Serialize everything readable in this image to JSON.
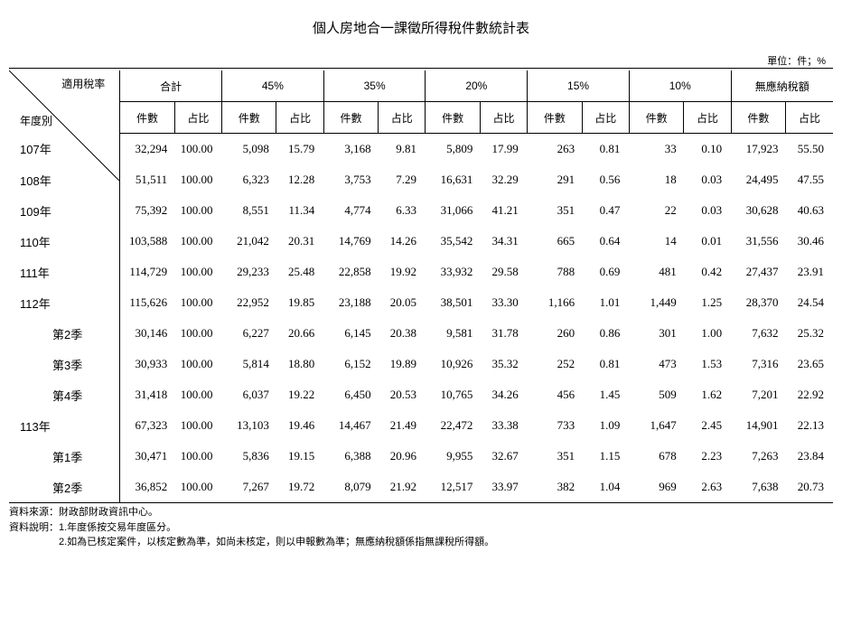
{
  "title": "個人房地合一課徵所得稅件數統計表",
  "unit_label": "單位：件；%",
  "diag": {
    "top": "適用稅率",
    "bot": "年度別"
  },
  "groups": [
    "合計",
    "45%",
    "35%",
    "20%",
    "15%",
    "10%",
    "無應納稅額"
  ],
  "sub_headers": {
    "count": "件數",
    "pct": "占比"
  },
  "rows": [
    {
      "label": "107年",
      "cls": "year",
      "vals": [
        "32,294",
        "100.00",
        "5,098",
        "15.79",
        "3,168",
        "9.81",
        "5,809",
        "17.99",
        "263",
        "0.81",
        "33",
        "0.10",
        "17,923",
        "55.50"
      ]
    },
    {
      "label": "108年",
      "cls": "year",
      "vals": [
        "51,511",
        "100.00",
        "6,323",
        "12.28",
        "3,753",
        "7.29",
        "16,631",
        "32.29",
        "291",
        "0.56",
        "18",
        "0.03",
        "24,495",
        "47.55"
      ]
    },
    {
      "label": "109年",
      "cls": "year",
      "vals": [
        "75,392",
        "100.00",
        "8,551",
        "11.34",
        "4,774",
        "6.33",
        "31,066",
        "41.21",
        "351",
        "0.47",
        "22",
        "0.03",
        "30,628",
        "40.63"
      ]
    },
    {
      "label": "110年",
      "cls": "year",
      "vals": [
        "103,588",
        "100.00",
        "21,042",
        "20.31",
        "14,769",
        "14.26",
        "35,542",
        "34.31",
        "665",
        "0.64",
        "14",
        "0.01",
        "31,556",
        "30.46"
      ]
    },
    {
      "label": "111年",
      "cls": "year",
      "vals": [
        "114,729",
        "100.00",
        "29,233",
        "25.48",
        "22,858",
        "19.92",
        "33,932",
        "29.58",
        "788",
        "0.69",
        "481",
        "0.42",
        "27,437",
        "23.91"
      ]
    },
    {
      "label": "112年",
      "cls": "year",
      "vals": [
        "115,626",
        "100.00",
        "22,952",
        "19.85",
        "23,188",
        "20.05",
        "38,501",
        "33.30",
        "1,166",
        "1.01",
        "1,449",
        "1.25",
        "28,370",
        "24.54"
      ]
    },
    {
      "label": "第2季",
      "cls": "quarter",
      "vals": [
        "30,146",
        "100.00",
        "6,227",
        "20.66",
        "6,145",
        "20.38",
        "9,581",
        "31.78",
        "260",
        "0.86",
        "301",
        "1.00",
        "7,632",
        "25.32"
      ]
    },
    {
      "label": "第3季",
      "cls": "quarter",
      "vals": [
        "30,933",
        "100.00",
        "5,814",
        "18.80",
        "6,152",
        "19.89",
        "10,926",
        "35.32",
        "252",
        "0.81",
        "473",
        "1.53",
        "7,316",
        "23.65"
      ]
    },
    {
      "label": "第4季",
      "cls": "quarter",
      "vals": [
        "31,418",
        "100.00",
        "6,037",
        "19.22",
        "6,450",
        "20.53",
        "10,765",
        "34.26",
        "456",
        "1.45",
        "509",
        "1.62",
        "7,201",
        "22.92"
      ]
    },
    {
      "label": "113年",
      "cls": "year",
      "vals": [
        "67,323",
        "100.00",
        "13,103",
        "19.46",
        "14,467",
        "21.49",
        "22,472",
        "33.38",
        "733",
        "1.09",
        "1,647",
        "2.45",
        "14,901",
        "22.13"
      ]
    },
    {
      "label": "第1季",
      "cls": "quarter",
      "vals": [
        "30,471",
        "100.00",
        "5,836",
        "19.15",
        "6,388",
        "20.96",
        "9,955",
        "32.67",
        "351",
        "1.15",
        "678",
        "2.23",
        "7,263",
        "23.84"
      ]
    },
    {
      "label": "第2季",
      "cls": "quarter",
      "last": true,
      "vals": [
        "36,852",
        "100.00",
        "7,267",
        "19.72",
        "8,079",
        "21.92",
        "12,517",
        "33.97",
        "382",
        "1.04",
        "969",
        "2.63",
        "7,638",
        "20.73"
      ]
    }
  ],
  "footnotes": {
    "source": "資料來源：財政部財政資訊中心。",
    "note1": "資料說明：1.年度係按交易年度區分。",
    "note2": "2.如為已核定案件，以核定數為準，如尚未核定，則以申報數為準；無應納稅額係指無課稅所得額。"
  }
}
